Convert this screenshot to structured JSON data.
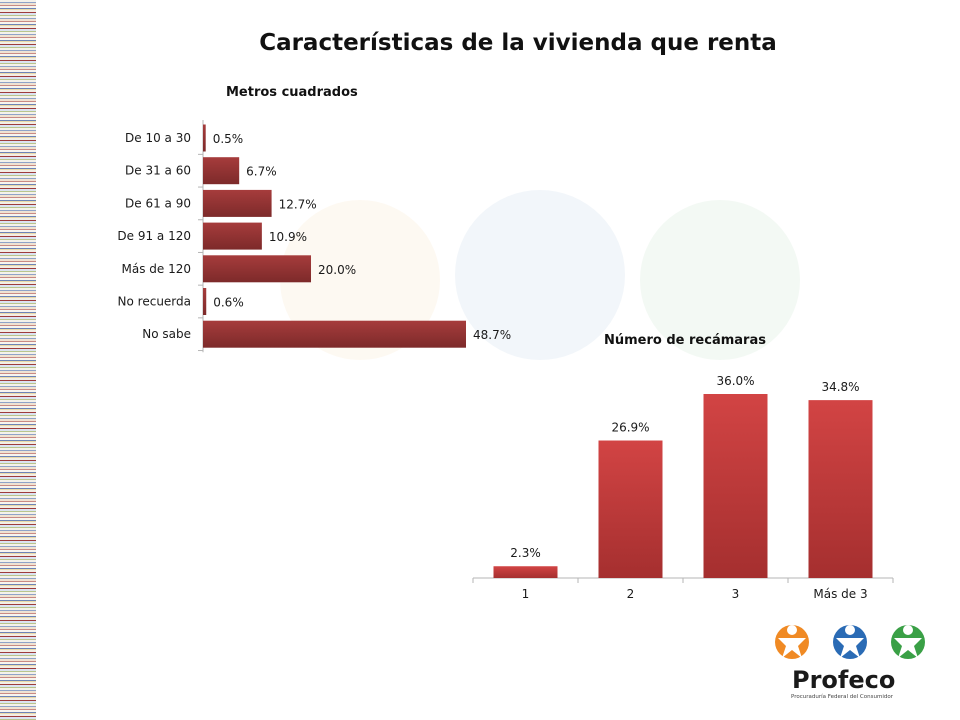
{
  "page": {
    "title": "Características de la vivienda que renta"
  },
  "colors": {
    "bar_dark": "#8f3232",
    "bar_light": "#cf4040",
    "bar_dark_bottom": "#9c2a2a"
  },
  "chart_data": [
    {
      "type": "bar",
      "orientation": "horizontal",
      "title": "Metros cuadrados",
      "categories": [
        "De 10 a 30",
        "De 31 a 60",
        "De 61 a 90",
        "De 91 a 120",
        "Más de 120",
        "No recuerda",
        "No sabe"
      ],
      "values": [
        0.5,
        6.7,
        12.7,
        10.9,
        20.0,
        0.6,
        48.7
      ],
      "labels": [
        "0.5%",
        "6.7%",
        "12.7%",
        "10.9%",
        "20.0%",
        "0.6%",
        "48.7%"
      ],
      "xlim": [
        0,
        50
      ],
      "grid": false,
      "legend": "none"
    },
    {
      "type": "bar",
      "orientation": "vertical",
      "title": "Número de recámaras",
      "categories": [
        "1",
        "2",
        "3",
        "Más de 3"
      ],
      "values": [
        2.3,
        26.9,
        36.0,
        34.8
      ],
      "labels": [
        "2.3%",
        "26.9%",
        "36.0%",
        "34.8%"
      ],
      "ylim": [
        0,
        40
      ],
      "grid": false,
      "legend": "none"
    }
  ],
  "logo": {
    "name": "Profeco",
    "tagline": "Procuraduría Federal del Consumidor"
  }
}
